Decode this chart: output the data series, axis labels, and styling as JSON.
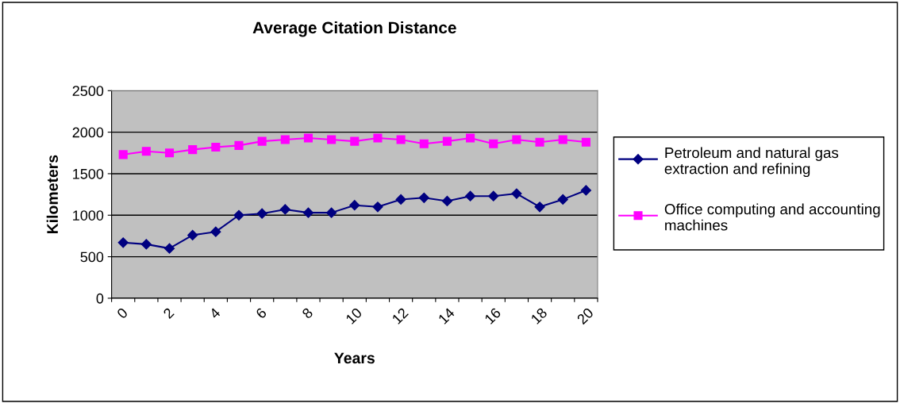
{
  "chart_data": {
    "type": "line",
    "title": "Average Citation Distance",
    "xlabel": "Years",
    "ylabel": "Kilometers",
    "categories": [
      "0",
      null,
      "2",
      null,
      "4",
      null,
      "6",
      null,
      "8",
      null,
      "10",
      null,
      "12",
      null,
      "14",
      null,
      "16",
      null,
      "18",
      null,
      "20"
    ],
    "series": [
      {
        "name": "Petroleum and natural gas extraction and refining",
        "color": "#000080",
        "marker": "diamond",
        "values": [
          670,
          650,
          600,
          760,
          800,
          1000,
          1020,
          1070,
          1030,
          1030,
          1120,
          1100,
          1190,
          1210,
          1170,
          1230,
          1230,
          1260,
          1100,
          1190,
          1300
        ]
      },
      {
        "name": "Office computing and accounting machines",
        "color": "#ff00ff",
        "marker": "square",
        "values": [
          1730,
          1770,
          1750,
          1790,
          1820,
          1840,
          1890,
          1910,
          1930,
          1910,
          1890,
          1930,
          1910,
          1860,
          1890,
          1930,
          1860,
          1910,
          1880,
          1910,
          1880
        ]
      }
    ],
    "ylim": [
      0,
      2500
    ],
    "yticks": [
      0,
      500,
      1000,
      1500,
      2000,
      2500
    ],
    "grid": "y",
    "legend": "right",
    "line_style": "solid"
  }
}
